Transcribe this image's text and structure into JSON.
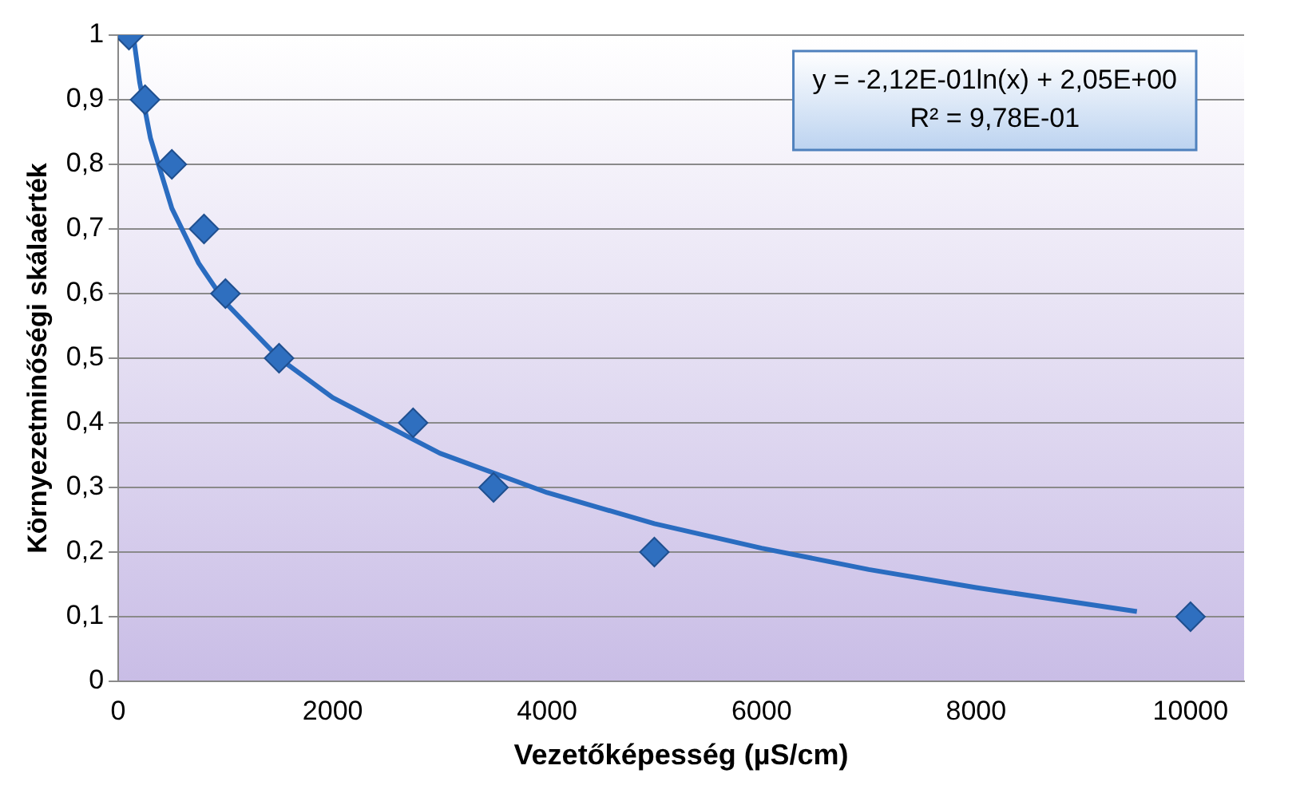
{
  "chart_data": {
    "type": "scatter",
    "xlabel": "Vezetőképesség (µS/cm)",
    "ylabel": "Környezetminőségi skálaérték",
    "annotations": [
      "y = -2,12E-01ln(x) + 2,05E+00",
      "R² = 9,78E-01"
    ],
    "series": [
      {
        "color": "#2f6fbf",
        "marker": "diamond",
        "x": [
          100,
          250,
          500,
          800,
          1000,
          1500,
          2750,
          3500,
          5000,
          10000
        ],
        "values": [
          1,
          0.9,
          0.8,
          0.7,
          0.6,
          0.5,
          0.4,
          0.3,
          0.2,
          0.1
        ]
      },
      {
        "type": "line",
        "color": "#2a6cc0",
        "marker": "none",
        "x": [
          150,
          200,
          300,
          500,
          750,
          1000,
          1500,
          2000,
          3000,
          4000,
          5000,
          6000,
          7000,
          8000,
          9500
        ],
        "values": [
          0.988,
          0.927,
          0.841,
          0.732,
          0.647,
          0.586,
          0.5,
          0.439,
          0.353,
          0.292,
          0.244,
          0.206,
          0.173,
          0.145,
          0.108
        ]
      }
    ],
    "xlim": [
      0,
      10500
    ],
    "xticks": [
      0,
      2000,
      4000,
      6000,
      8000,
      10000
    ],
    "ylim": [
      0,
      1
    ],
    "yticks": [
      {
        "value": 0,
        "label": "0"
      },
      {
        "value": 0.1,
        "label": "0,1"
      },
      {
        "value": 0.2,
        "label": "0,2"
      },
      {
        "value": 0.3,
        "label": "0,3"
      },
      {
        "value": 0.4,
        "label": "0,4"
      },
      {
        "value": 0.5,
        "label": "0,5"
      },
      {
        "value": 0.6,
        "label": "0,6"
      },
      {
        "value": 0.7,
        "label": "0,7"
      },
      {
        "value": 0.8,
        "label": "0,8"
      },
      {
        "value": 0.9,
        "label": "0,9"
      },
      {
        "value": 1,
        "label": "1"
      }
    ],
    "grid": "y",
    "legend": false
  }
}
